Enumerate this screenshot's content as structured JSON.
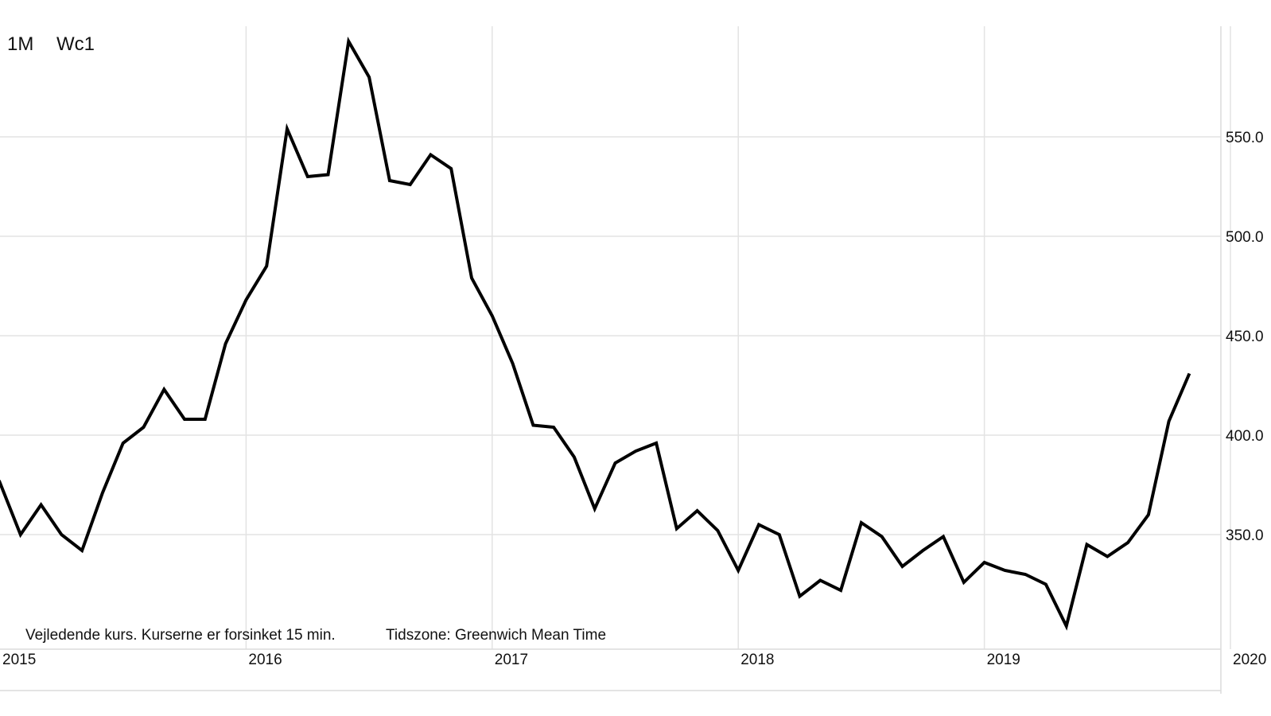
{
  "header": {
    "interval": "1M",
    "symbol": "Wc1"
  },
  "footer": {
    "disclaimer": "Vejledende kurs. Kurserne er forsinket 15 min.",
    "timezone": "Tidszone: Greenwich Mean Time"
  },
  "chart_data": {
    "type": "line",
    "title": "",
    "xlabel": "",
    "ylabel": "",
    "y_ticks": [
      350,
      400,
      450,
      500,
      550
    ],
    "y_tick_labels": [
      "350.0",
      "400.0",
      "450.0",
      "500.0",
      "550.0"
    ],
    "ylim": [
      290,
      600
    ],
    "x_ticks": [
      "2015",
      "2016",
      "2017",
      "2018",
      "2019",
      "2020"
    ],
    "xlim": [
      "2015-01",
      "2020-02"
    ],
    "grid": true,
    "line_color": "#000000",
    "series": [
      {
        "values": [
          {
            "x": "2014-12",
            "y": 363
          },
          {
            "x": "2015-01",
            "y": 376
          },
          {
            "x": "2015-02",
            "y": 350
          },
          {
            "x": "2015-03",
            "y": 365
          },
          {
            "x": "2015-04",
            "y": 350
          },
          {
            "x": "2015-05",
            "y": 342
          },
          {
            "x": "2015-06",
            "y": 371
          },
          {
            "x": "2015-07",
            "y": 396
          },
          {
            "x": "2015-08",
            "y": 404
          },
          {
            "x": "2015-09",
            "y": 423
          },
          {
            "x": "2015-10",
            "y": 408
          },
          {
            "x": "2015-11",
            "y": 408
          },
          {
            "x": "2015-12",
            "y": 446
          },
          {
            "x": "2016-01",
            "y": 468
          },
          {
            "x": "2016-02",
            "y": 485
          },
          {
            "x": "2016-03",
            "y": 554
          },
          {
            "x": "2016-04",
            "y": 530
          },
          {
            "x": "2016-05",
            "y": 531
          },
          {
            "x": "2016-06",
            "y": 598
          },
          {
            "x": "2016-07",
            "y": 580
          },
          {
            "x": "2016-08",
            "y": 528
          },
          {
            "x": "2016-09",
            "y": 526
          },
          {
            "x": "2016-10",
            "y": 541
          },
          {
            "x": "2016-11",
            "y": 534
          },
          {
            "x": "2016-12",
            "y": 479
          },
          {
            "x": "2017-01",
            "y": 460
          },
          {
            "x": "2017-02",
            "y": 436
          },
          {
            "x": "2017-03",
            "y": 405
          },
          {
            "x": "2017-04",
            "y": 404
          },
          {
            "x": "2017-05",
            "y": 389
          },
          {
            "x": "2017-06",
            "y": 363
          },
          {
            "x": "2017-07",
            "y": 386
          },
          {
            "x": "2017-08",
            "y": 392
          },
          {
            "x": "2017-09",
            "y": 396
          },
          {
            "x": "2017-10",
            "y": 353
          },
          {
            "x": "2017-11",
            "y": 362
          },
          {
            "x": "2017-12",
            "y": 352
          },
          {
            "x": "2018-01",
            "y": 332
          },
          {
            "x": "2018-02",
            "y": 355
          },
          {
            "x": "2018-03",
            "y": 350
          },
          {
            "x": "2018-04",
            "y": 319
          },
          {
            "x": "2018-05",
            "y": 327
          },
          {
            "x": "2018-06",
            "y": 322
          },
          {
            "x": "2018-07",
            "y": 356
          },
          {
            "x": "2018-08",
            "y": 349
          },
          {
            "x": "2018-09",
            "y": 334
          },
          {
            "x": "2018-10",
            "y": 342
          },
          {
            "x": "2018-11",
            "y": 349
          },
          {
            "x": "2018-12",
            "y": 326
          },
          {
            "x": "2019-01",
            "y": 336
          },
          {
            "x": "2019-02",
            "y": 332
          },
          {
            "x": "2019-03",
            "y": 330
          },
          {
            "x": "2019-04",
            "y": 325
          },
          {
            "x": "2019-05",
            "y": 304
          },
          {
            "x": "2019-06",
            "y": 345
          },
          {
            "x": "2019-07",
            "y": 339
          },
          {
            "x": "2019-08",
            "y": 346
          },
          {
            "x": "2019-09",
            "y": 360
          },
          {
            "x": "2019-10",
            "y": 407
          },
          {
            "x": "2019-11",
            "y": 431
          }
        ]
      }
    ]
  }
}
